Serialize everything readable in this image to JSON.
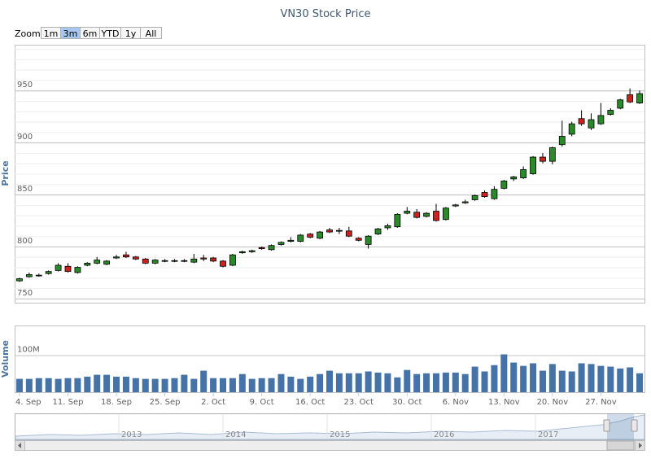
{
  "chart_data": {
    "type": "candlestick",
    "title": "VN30 Stock Price",
    "range_selector": {
      "label": "Zoom",
      "buttons": [
        "1m",
        "3m",
        "6m",
        "YTD",
        "1y",
        "All"
      ],
      "selected": 1
    },
    "categories": [
      "4. Sep",
      null,
      null,
      null,
      null,
      "11. Sep",
      null,
      null,
      null,
      null,
      "18. Sep",
      null,
      null,
      null,
      null,
      "25. Sep",
      null,
      null,
      null,
      null,
      "2. Oct",
      null,
      null,
      null,
      null,
      "9. Oct",
      null,
      null,
      null,
      null,
      "16. Oct",
      null,
      null,
      null,
      null,
      "23. Oct",
      null,
      null,
      null,
      null,
      "30. Oct",
      null,
      null,
      null,
      null,
      "6. Nov",
      null,
      null,
      null,
      null,
      "13. Nov",
      null,
      null,
      null,
      null,
      "20. Nov",
      null,
      null,
      null,
      null,
      "27. Nov",
      null,
      null,
      null,
      null
    ],
    "ylabel": "Price",
    "ylim": [
      746,
      994
    ],
    "yticks": [
      750,
      800,
      850,
      900,
      950
    ],
    "minor_tick_interval": 10,
    "grid": true,
    "up_color": "#2a8a2a",
    "down_color": "#cc2222",
    "open": [
      767,
      771,
      772,
      774,
      777,
      781,
      775,
      782,
      784,
      783,
      789,
      792,
      790,
      788,
      784,
      786,
      786,
      786,
      785,
      789,
      789,
      786,
      782,
      794,
      795,
      799,
      797,
      802,
      805,
      805,
      812,
      808,
      816,
      815,
      815,
      808,
      802,
      812,
      818,
      819,
      832,
      833,
      829,
      834,
      826,
      839,
      842,
      845,
      852,
      846,
      856,
      865,
      866,
      870,
      886,
      882,
      898,
      908,
      923,
      914,
      918,
      927,
      933,
      946,
      938
    ],
    "high": [
      770,
      775,
      774,
      777,
      784,
      784,
      781,
      785,
      790,
      787,
      792,
      795,
      791,
      789,
      788,
      788,
      788,
      788,
      793,
      792,
      790,
      787,
      793,
      796,
      797,
      800,
      802,
      805,
      809,
      812,
      813,
      815,
      818,
      818,
      819,
      809,
      811,
      818,
      822,
      832,
      838,
      836,
      833,
      841,
      838,
      841,
      845,
      850,
      854,
      858,
      864,
      868,
      877,
      887,
      890,
      896,
      921,
      920,
      931,
      928,
      938,
      933,
      942,
      952,
      950
    ],
    "low": [
      766,
      770,
      771,
      773,
      776,
      775,
      774,
      781,
      783,
      782,
      788,
      789,
      787,
      783,
      783,
      785,
      785,
      785,
      784,
      786,
      785,
      780,
      781,
      793,
      794,
      797,
      796,
      801,
      804,
      804,
      808,
      807,
      813,
      812,
      809,
      805,
      798,
      811,
      816,
      818,
      831,
      827,
      828,
      824,
      825,
      838,
      841,
      844,
      847,
      845,
      855,
      863,
      865,
      869,
      880,
      879,
      896,
      906,
      916,
      912,
      917,
      926,
      932,
      938,
      937
    ],
    "close": [
      769,
      773,
      772.5,
      776,
      782,
      776,
      780,
      784,
      787,
      786,
      790,
      790,
      788,
      784,
      787,
      786.5,
      786.5,
      786.5,
      788,
      788,
      786,
      781,
      792,
      795,
      796,
      798,
      801,
      804,
      806,
      811,
      809,
      814,
      814,
      815.5,
      810,
      806,
      810,
      817,
      820,
      831,
      834,
      828,
      832,
      825,
      837,
      840,
      843,
      849,
      848,
      855,
      863,
      867,
      874,
      886,
      882,
      895,
      906,
      918,
      918,
      922,
      926,
      931,
      941,
      939,
      947
    ],
    "volume": {
      "ylabel": "Volume",
      "color": "#4572a7",
      "ylim": [
        0,
        180000000
      ],
      "yticks": [
        {
          "value": 100000000,
          "label": "100M"
        }
      ],
      "values": [
        36000000,
        36000000,
        38000000,
        38000000,
        36000000,
        38000000,
        38000000,
        42000000,
        47000000,
        47000000,
        42000000,
        42000000,
        38000000,
        36000000,
        36000000,
        36000000,
        38000000,
        47000000,
        36000000,
        58000000,
        38000000,
        38000000,
        38000000,
        49000000,
        36000000,
        38000000,
        38000000,
        49000000,
        42000000,
        36000000,
        42000000,
        49000000,
        58000000,
        51000000,
        51000000,
        51000000,
        56000000,
        53000000,
        51000000,
        40000000,
        60000000,
        49000000,
        51000000,
        51000000,
        53000000,
        53000000,
        49000000,
        69000000,
        56000000,
        73000000,
        102000000,
        80000000,
        71000000,
        78000000,
        58000000,
        76000000,
        58000000,
        56000000,
        78000000,
        76000000,
        71000000,
        69000000,
        64000000,
        67000000,
        51000000
      ]
    },
    "navigator": {
      "labels": [
        "2013",
        "2014",
        "2015",
        "2016",
        "2017"
      ]
    }
  }
}
